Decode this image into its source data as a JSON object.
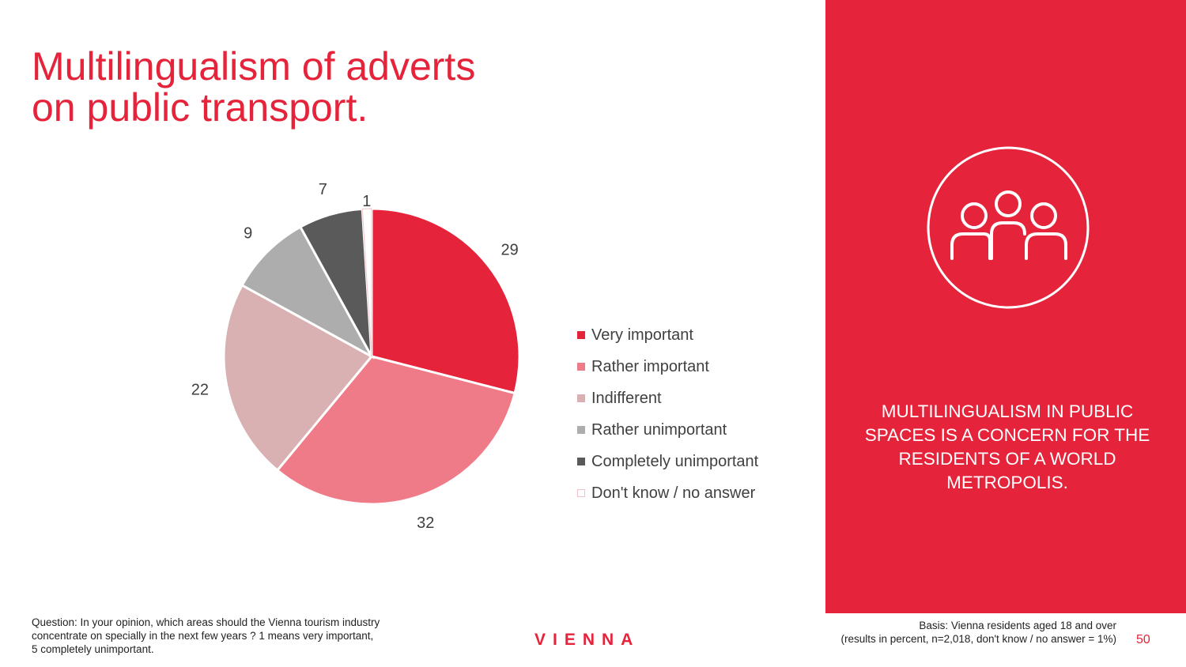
{
  "title": {
    "line1": "Multilingualism of adverts",
    "line2": "on public transport."
  },
  "chart_data": {
    "type": "pie",
    "title": "Multilingualism of adverts on public transport.",
    "categories": [
      "Very important",
      "Rather important",
      "Indifferent",
      "Rather unimportant",
      "Completely unimportant",
      "Don't know / no answer"
    ],
    "values": [
      29,
      32,
      22,
      9,
      7,
      1
    ],
    "colors": [
      "#e5233a",
      "#f07b88",
      "#d9b1b2",
      "#adadad",
      "#5a5a5a",
      "#ffffff"
    ],
    "legend_position": "right"
  },
  "panel": {
    "text": "MULTILINGUALISM IN PUBLIC SPACES IS A CONCERN FOR THE RESIDENTS OF A WORLD METROPOLIS.",
    "icon": "people-group-icon"
  },
  "footer": {
    "question_line1": "Question: In your opinion, which areas should the Vienna tourism industry",
    "question_line2": "concentrate on specially in the next few years ? 1 means very important,",
    "question_line3": "5 completely unimportant.",
    "logo": "VIENNA",
    "basis_line1": "Basis: Vienna residents aged 18 and over",
    "basis_line2": "(results in percent, n=2,018, don't know / no answer = 1%)",
    "page_number": "50"
  }
}
